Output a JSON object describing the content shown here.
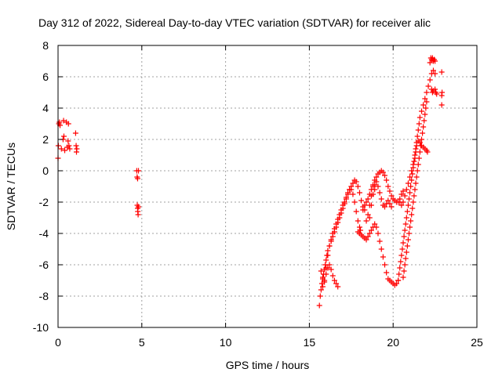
{
  "chart_data": {
    "type": "scatter",
    "title": "Day 312 of 2022, Sidereal Day-to-day VTEC variation (SDTVAR) for receiver alic",
    "xlabel": "GPS time / hours",
    "ylabel": "SDTVAR / TECUs",
    "xlim": [
      0,
      25
    ],
    "ylim": [
      -10,
      8
    ],
    "xticks": [
      0,
      5,
      10,
      15,
      20,
      25
    ],
    "yticks": [
      -10,
      -8,
      -6,
      -4,
      -2,
      0,
      2,
      4,
      6,
      8
    ],
    "xtick_labels": [
      "0",
      "5",
      "10",
      "15",
      "20",
      "25"
    ],
    "ytick_labels": [
      "-10",
      "-8",
      "-6",
      "-4",
      "-2",
      "0",
      "2",
      "4",
      "6",
      "8"
    ],
    "grid": true,
    "marker": "plus",
    "color": "#ff0000",
    "series": [
      {
        "points": [
          [
            0.0,
            0.8
          ],
          [
            0.02,
            1.6
          ],
          [
            0.05,
            3.0
          ],
          [
            0.08,
            3.1
          ],
          [
            0.12,
            2.9
          ],
          [
            0.2,
            1.4
          ],
          [
            0.3,
            2.0
          ],
          [
            0.33,
            3.2
          ],
          [
            0.35,
            2.2
          ],
          [
            0.4,
            1.3
          ],
          [
            0.5,
            3.1
          ],
          [
            0.55,
            1.5
          ],
          [
            0.6,
            1.9
          ],
          [
            0.62,
            3.0
          ],
          [
            0.65,
            1.6
          ],
          [
            0.7,
            1.4
          ],
          [
            1.05,
            2.4
          ],
          [
            1.08,
            1.6
          ],
          [
            1.1,
            1.2
          ],
          [
            1.12,
            1.4
          ],
          [
            4.7,
            0.0
          ],
          [
            4.72,
            -0.4
          ],
          [
            4.75,
            -0.5
          ],
          [
            4.73,
            -2.2
          ],
          [
            4.75,
            -2.4
          ],
          [
            4.76,
            -2.6
          ],
          [
            4.78,
            -2.8
          ],
          [
            4.8,
            -2.3
          ],
          [
            4.8,
            0.0
          ],
          [
            15.6,
            -8.6
          ],
          [
            15.65,
            -8.0
          ],
          [
            15.7,
            -7.6
          ],
          [
            15.75,
            -7.2
          ],
          [
            15.8,
            -6.9
          ],
          [
            15.85,
            -6.6
          ],
          [
            15.9,
            -6.3
          ],
          [
            15.95,
            -6.0
          ],
          [
            16.0,
            -5.7
          ],
          [
            16.05,
            -5.4
          ],
          [
            16.1,
            -5.1
          ],
          [
            16.2,
            -4.8
          ],
          [
            16.3,
            -4.5
          ],
          [
            16.4,
            -4.2
          ],
          [
            16.5,
            -3.9
          ],
          [
            16.6,
            -3.6
          ],
          [
            16.7,
            -3.3
          ],
          [
            16.8,
            -3.0
          ],
          [
            16.9,
            -2.7
          ],
          [
            17.0,
            -2.4
          ],
          [
            17.1,
            -2.1
          ],
          [
            17.2,
            -1.8
          ],
          [
            17.3,
            -1.5
          ],
          [
            17.4,
            -1.2
          ],
          [
            17.5,
            -1.0
          ],
          [
            17.6,
            -0.8
          ],
          [
            17.7,
            -0.6
          ],
          [
            17.8,
            -0.7
          ],
          [
            17.9,
            -1.0
          ],
          [
            18.0,
            -1.4
          ],
          [
            18.1,
            -1.9
          ],
          [
            18.2,
            -2.3
          ],
          [
            18.3,
            -2.5
          ],
          [
            15.7,
            -6.4
          ],
          [
            15.8,
            -6.8
          ],
          [
            15.9,
            -7.1
          ],
          [
            16.0,
            -6.6
          ],
          [
            16.1,
            -6.2
          ],
          [
            16.2,
            -6.0
          ],
          [
            16.3,
            -6.3
          ],
          [
            16.4,
            -6.7
          ],
          [
            16.5,
            -7.0
          ],
          [
            16.6,
            -7.2
          ],
          [
            16.7,
            -7.4
          ],
          [
            15.8,
            -7.4
          ],
          [
            15.9,
            -7.0
          ],
          [
            16.0,
            -6.2
          ],
          [
            16.1,
            -5.4
          ],
          [
            16.2,
            -4.8
          ],
          [
            16.3,
            -4.4
          ],
          [
            16.4,
            -4.0
          ],
          [
            16.5,
            -3.7
          ],
          [
            16.6,
            -3.4
          ],
          [
            16.7,
            -3.1
          ],
          [
            16.8,
            -2.8
          ],
          [
            16.9,
            -2.5
          ],
          [
            17.0,
            -2.2
          ],
          [
            17.1,
            -2.0
          ],
          [
            17.2,
            -1.7
          ],
          [
            17.3,
            -1.4
          ],
          [
            17.4,
            -1.2
          ],
          [
            17.5,
            -1.2
          ],
          [
            17.6,
            -1.5
          ],
          [
            17.7,
            -2.0
          ],
          [
            17.8,
            -2.6
          ],
          [
            17.9,
            -3.2
          ],
          [
            18.0,
            -3.6
          ],
          [
            18.05,
            -3.8
          ],
          [
            17.9,
            -3.9
          ],
          [
            18.0,
            -4.0
          ],
          [
            18.1,
            -4.1
          ],
          [
            18.2,
            -4.2
          ],
          [
            18.3,
            -4.3
          ],
          [
            18.4,
            -4.4
          ],
          [
            18.5,
            -4.2
          ],
          [
            18.6,
            -4.0
          ],
          [
            18.7,
            -3.8
          ],
          [
            18.8,
            -3.6
          ],
          [
            18.9,
            -3.4
          ],
          [
            19.0,
            -3.6
          ],
          [
            19.1,
            -4.0
          ],
          [
            19.2,
            -4.5
          ],
          [
            19.3,
            -5.0
          ],
          [
            19.4,
            -5.5
          ],
          [
            19.5,
            -6.0
          ],
          [
            19.6,
            -6.5
          ],
          [
            19.7,
            -6.9
          ],
          [
            19.8,
            -7.0
          ],
          [
            19.9,
            -7.1
          ],
          [
            20.0,
            -7.2
          ],
          [
            20.1,
            -7.3
          ],
          [
            20.2,
            -7.2
          ],
          [
            20.3,
            -7.0
          ],
          [
            18.2,
            -2.5
          ],
          [
            18.3,
            -2.2
          ],
          [
            18.4,
            -2.0
          ],
          [
            18.5,
            -1.8
          ],
          [
            18.6,
            -1.5
          ],
          [
            18.7,
            -1.2
          ],
          [
            18.8,
            -0.9
          ],
          [
            18.9,
            -0.6
          ],
          [
            19.0,
            -0.4
          ],
          [
            19.1,
            -0.2
          ],
          [
            19.2,
            -0.1
          ],
          [
            19.3,
            0.0
          ],
          [
            19.4,
            -0.1
          ],
          [
            19.5,
            -0.3
          ],
          [
            19.6,
            -0.6
          ],
          [
            19.7,
            -1.0
          ],
          [
            19.8,
            -1.3
          ],
          [
            19.9,
            -1.6
          ],
          [
            20.0,
            -1.8
          ],
          [
            20.1,
            -1.9
          ],
          [
            20.2,
            -2.0
          ],
          [
            20.3,
            -2.0
          ],
          [
            20.4,
            -1.8
          ],
          [
            20.5,
            -1.5
          ],
          [
            20.6,
            -1.3
          ],
          [
            18.6,
            -3.0
          ],
          [
            18.7,
            -2.2
          ],
          [
            18.8,
            -1.5
          ],
          [
            18.9,
            -0.9
          ],
          [
            19.0,
            -0.7
          ],
          [
            19.1,
            -1.0
          ],
          [
            19.2,
            -1.4
          ],
          [
            19.3,
            -1.8
          ],
          [
            19.4,
            -2.2
          ],
          [
            19.5,
            -2.3
          ],
          [
            19.6,
            -2.1
          ],
          [
            19.7,
            -1.9
          ],
          [
            19.8,
            -2.1
          ],
          [
            19.9,
            -2.3
          ],
          [
            18.4,
            -3.2
          ],
          [
            18.5,
            -2.8
          ],
          [
            18.6,
            -2.2
          ],
          [
            18.7,
            -1.6
          ],
          [
            18.8,
            -1.0
          ],
          [
            18.9,
            -1.2
          ],
          [
            20.3,
            -7.0
          ],
          [
            20.35,
            -6.6
          ],
          [
            20.4,
            -6.2
          ],
          [
            20.45,
            -5.8
          ],
          [
            20.5,
            -5.4
          ],
          [
            20.55,
            -5.0
          ],
          [
            20.6,
            -4.6
          ],
          [
            20.65,
            -4.2
          ],
          [
            20.7,
            -3.8
          ],
          [
            20.75,
            -3.4
          ],
          [
            20.8,
            -3.0
          ],
          [
            20.85,
            -2.6
          ],
          [
            20.9,
            -2.2
          ],
          [
            20.95,
            -1.8
          ],
          [
            21.0,
            -1.4
          ],
          [
            21.05,
            -1.0
          ],
          [
            21.1,
            -0.6
          ],
          [
            21.15,
            -0.2
          ],
          [
            21.2,
            0.2
          ],
          [
            21.25,
            0.6
          ],
          [
            21.3,
            1.0
          ],
          [
            21.35,
            1.4
          ],
          [
            21.4,
            1.8
          ],
          [
            21.45,
            2.2
          ],
          [
            21.5,
            2.6
          ],
          [
            21.55,
            3.0
          ],
          [
            21.6,
            3.4
          ],
          [
            21.7,
            3.8
          ],
          [
            21.8,
            4.2
          ],
          [
            21.9,
            4.6
          ],
          [
            22.0,
            5.0
          ],
          [
            22.1,
            5.4
          ],
          [
            22.2,
            5.8
          ],
          [
            22.3,
            6.2
          ],
          [
            22.4,
            6.4
          ],
          [
            22.5,
            6.2
          ],
          [
            20.6,
            -6.8
          ],
          [
            20.65,
            -6.4
          ],
          [
            20.7,
            -6.0
          ],
          [
            20.75,
            -5.6
          ],
          [
            20.8,
            -5.2
          ],
          [
            20.85,
            -4.8
          ],
          [
            20.9,
            -4.4
          ],
          [
            20.95,
            -4.0
          ],
          [
            21.0,
            -3.6
          ],
          [
            21.05,
            -3.2
          ],
          [
            21.1,
            -2.8
          ],
          [
            21.15,
            -2.4
          ],
          [
            21.2,
            -2.0
          ],
          [
            21.25,
            -1.6
          ],
          [
            21.3,
            -1.2
          ],
          [
            21.35,
            -0.8
          ],
          [
            21.4,
            -0.4
          ],
          [
            21.45,
            0.0
          ],
          [
            21.5,
            0.4
          ],
          [
            21.55,
            0.8
          ],
          [
            21.6,
            1.2
          ],
          [
            21.65,
            1.6
          ],
          [
            21.7,
            2.0
          ],
          [
            21.75,
            2.4
          ],
          [
            21.8,
            2.8
          ],
          [
            21.85,
            3.2
          ],
          [
            21.9,
            3.6
          ],
          [
            21.95,
            4.0
          ],
          [
            22.0,
            4.4
          ],
          [
            20.4,
            -2.0
          ],
          [
            20.5,
            -2.2
          ],
          [
            20.6,
            -2.0
          ],
          [
            20.7,
            -1.6
          ],
          [
            20.8,
            -1.2
          ],
          [
            20.9,
            -0.8
          ],
          [
            21.0,
            -0.4
          ],
          [
            21.1,
            0.0
          ],
          [
            21.2,
            0.4
          ],
          [
            21.3,
            0.8
          ],
          [
            21.35,
            1.2
          ],
          [
            21.4,
            1.6
          ],
          [
            21.5,
            1.9
          ],
          [
            21.6,
            1.8
          ],
          [
            21.7,
            1.6
          ],
          [
            21.8,
            1.5
          ],
          [
            21.9,
            1.4
          ],
          [
            22.0,
            1.3
          ],
          [
            22.05,
            1.2
          ],
          [
            22.2,
            6.9
          ],
          [
            22.25,
            7.2
          ],
          [
            22.3,
            7.1
          ],
          [
            22.35,
            7.2
          ],
          [
            22.4,
            7.0
          ],
          [
            22.45,
            7.1
          ],
          [
            22.5,
            7.0
          ],
          [
            22.3,
            5.2
          ],
          [
            22.35,
            5.0
          ],
          [
            22.4,
            5.1
          ],
          [
            22.5,
            5.2
          ],
          [
            22.55,
            5.0
          ],
          [
            22.6,
            4.9
          ],
          [
            22.9,
            6.3
          ],
          [
            22.9,
            4.8
          ],
          [
            22.9,
            4.2
          ],
          [
            22.92,
            5.0
          ]
        ]
      }
    ]
  }
}
